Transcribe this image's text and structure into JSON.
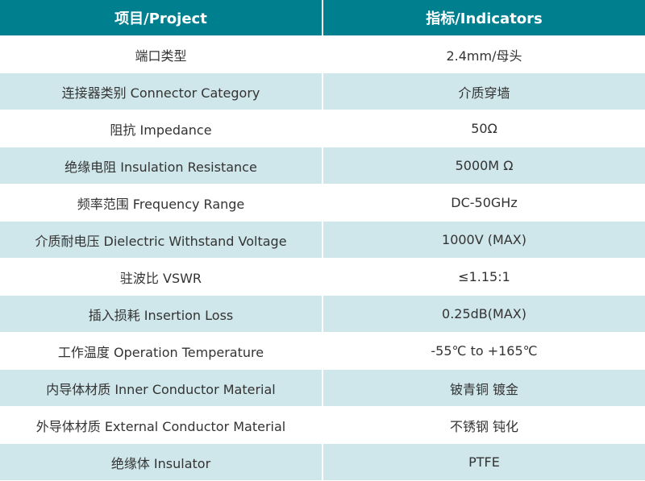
{
  "colors": {
    "header_bg": "#00808f",
    "alt_row_bg": "#cfe6ea"
  },
  "header": {
    "project": "项目/Project",
    "indicators": "指标/Indicators"
  },
  "rows": [
    {
      "project": "端口类型",
      "value": "2.4mm/母头"
    },
    {
      "project": "连接器类别 Connector Category",
      "value": "介质穿墙"
    },
    {
      "project": "阻抗 Impedance",
      "value": "50Ω"
    },
    {
      "project": "绝缘电阻 Insulation Resistance",
      "value": "5000M Ω"
    },
    {
      "project": "频率范围 Frequency Range",
      "value": "DC-50GHz"
    },
    {
      "project": "介质耐电压 Dielectric Withstand Voltage",
      "value": "1000V (MAX)"
    },
    {
      "project": "驻波比 VSWR",
      "value": "≤1.15:1"
    },
    {
      "project": "插入损耗 Insertion Loss",
      "value": "0.25dB(MAX)"
    },
    {
      "project": "工作温度 Operation Temperature",
      "value": "-55℃ to +165℃"
    },
    {
      "project": "内导体材质 Inner Conductor Material",
      "value": "铍青铜 镀金"
    },
    {
      "project": "外导体材质 External Conductor Material",
      "value": "不锈钢 钝化"
    },
    {
      "project": "绝缘体 Insulator",
      "value": "PTFE"
    }
  ]
}
